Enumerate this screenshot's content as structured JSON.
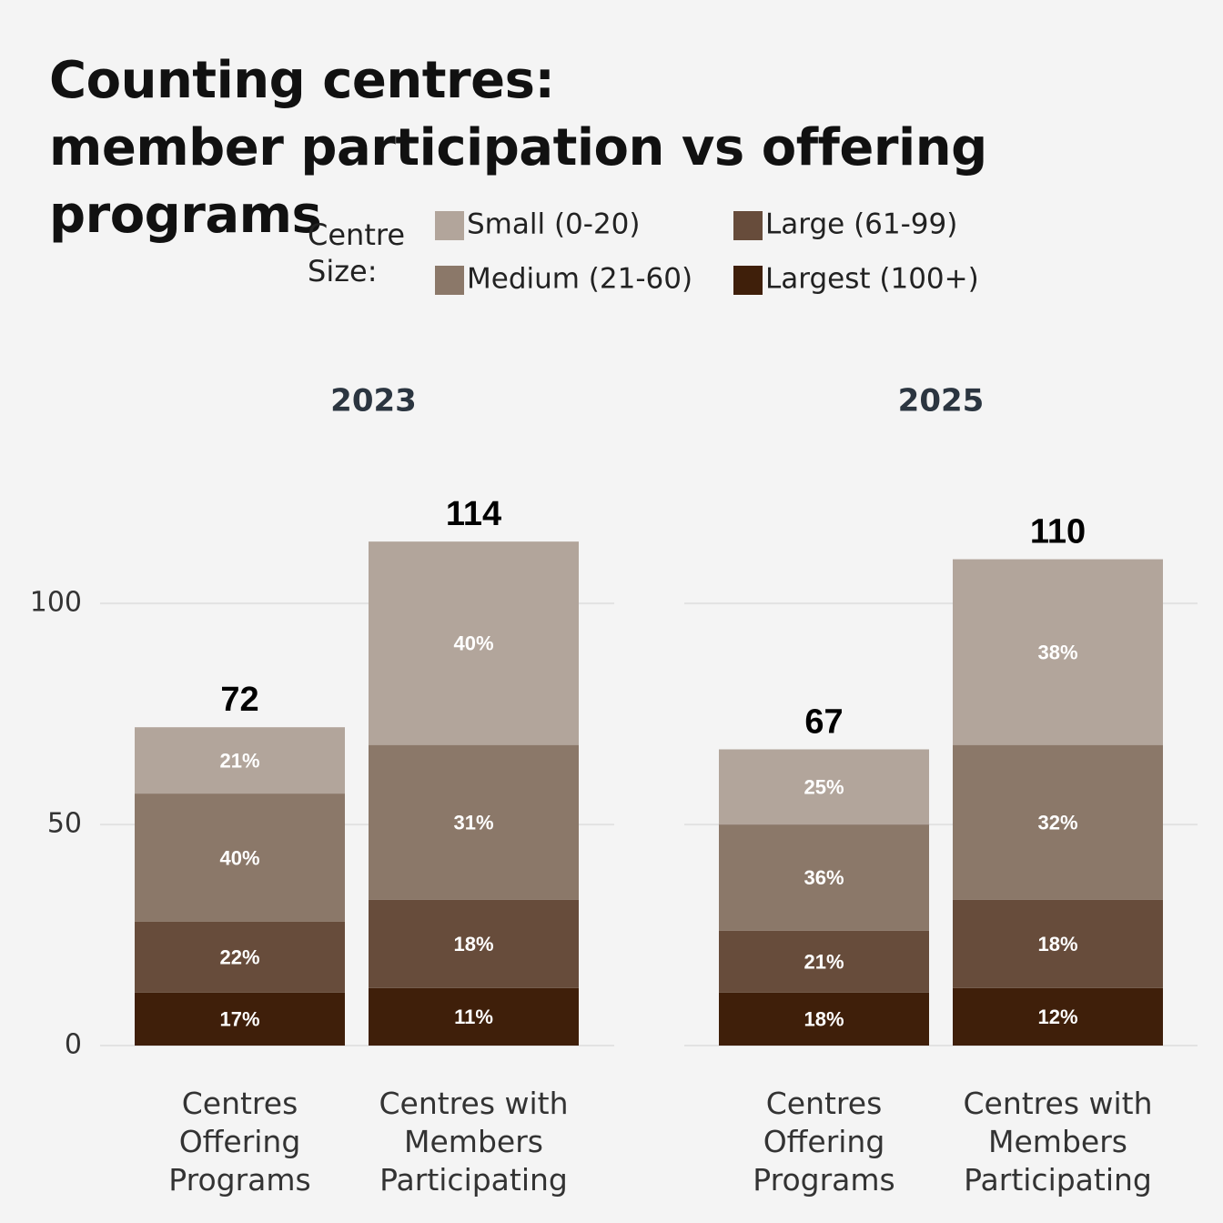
{
  "chart_data": {
    "type": "bar",
    "stacked": true,
    "title": "Counting centres:\nmember participation vs offering programs",
    "legend_title": "Centre\nSize:",
    "facets": [
      "2023",
      "2025"
    ],
    "categories": [
      "Centres\nOffering\nPrograms",
      "Centres with\nMembers\nParticipating",
      "Centres\nOffering\nPrograms",
      "Centres with\nMembers\nParticipating"
    ],
    "totals": [
      72,
      114,
      67,
      110
    ],
    "series": [
      {
        "name": "Largest (100+)",
        "color": "#3f1f0a",
        "values": [
          12,
          13,
          12,
          13
        ],
        "share_labels": [
          "17%",
          "11%",
          "18%",
          "12%"
        ]
      },
      {
        "name": "Large (61-99)",
        "color": "#674c3b",
        "values": [
          16,
          20,
          14,
          20
        ],
        "share_labels": [
          "22%",
          "18%",
          "21%",
          "18%"
        ]
      },
      {
        "name": "Medium (21-60)",
        "color": "#8b7869",
        "values": [
          29,
          35,
          24,
          35
        ],
        "share_labels": [
          "40%",
          "31%",
          "36%",
          "32%"
        ]
      },
      {
        "name": "Small (0-20)",
        "color": "#b2a59b",
        "values": [
          15,
          46,
          17,
          42
        ],
        "share_labels": [
          "21%",
          "40%",
          "25%",
          "38%"
        ]
      }
    ],
    "ylim": [
      0,
      120
    ],
    "yticks": [
      0,
      50,
      100
    ],
    "grid": true
  }
}
